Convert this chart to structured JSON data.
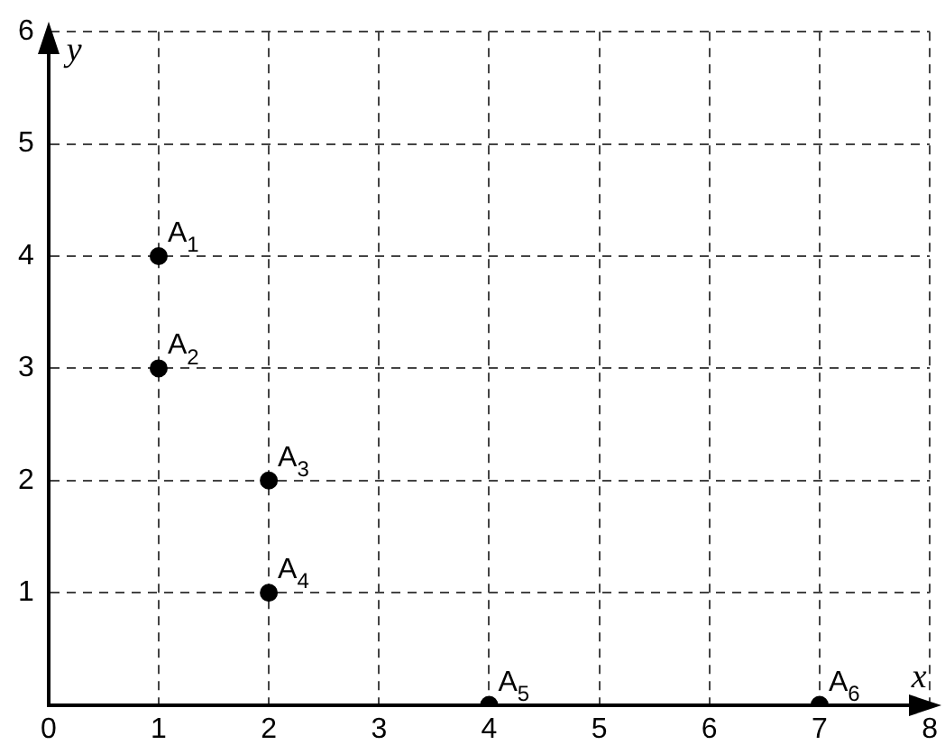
{
  "chart_data": {
    "type": "scatter",
    "xlabel": "x",
    "ylabel": "y",
    "x": [
      1,
      1,
      2,
      2,
      4,
      7
    ],
    "values": [
      4,
      3,
      2,
      1,
      0,
      0
    ],
    "color": "#000000",
    "marker": "circle",
    "xlim": [
      0,
      8
    ],
    "xticks": [
      0,
      1,
      2,
      3,
      4,
      5,
      6,
      7,
      8
    ],
    "ylim": [
      0,
      6
    ],
    "yticks": [
      {
        "value": 0,
        "label": null
      },
      1,
      2,
      3,
      4,
      5,
      6
    ],
    "grid": true,
    "line_style": "dashed",
    "annotations": [
      {
        "text": "A$_{1}$",
        "x": 1,
        "y": 4
      },
      {
        "text": "A$_{2}$",
        "x": 1,
        "y": 3
      },
      {
        "text": "A$_{3}$",
        "x": 2,
        "y": 2
      },
      {
        "text": "A$_{4}$",
        "x": 2,
        "y": 1
      },
      {
        "text": "A$_{5}$",
        "x": 4,
        "y": 0
      },
      {
        "text": "A$_{6}$",
        "x": 7,
        "y": 0
      }
    ]
  }
}
